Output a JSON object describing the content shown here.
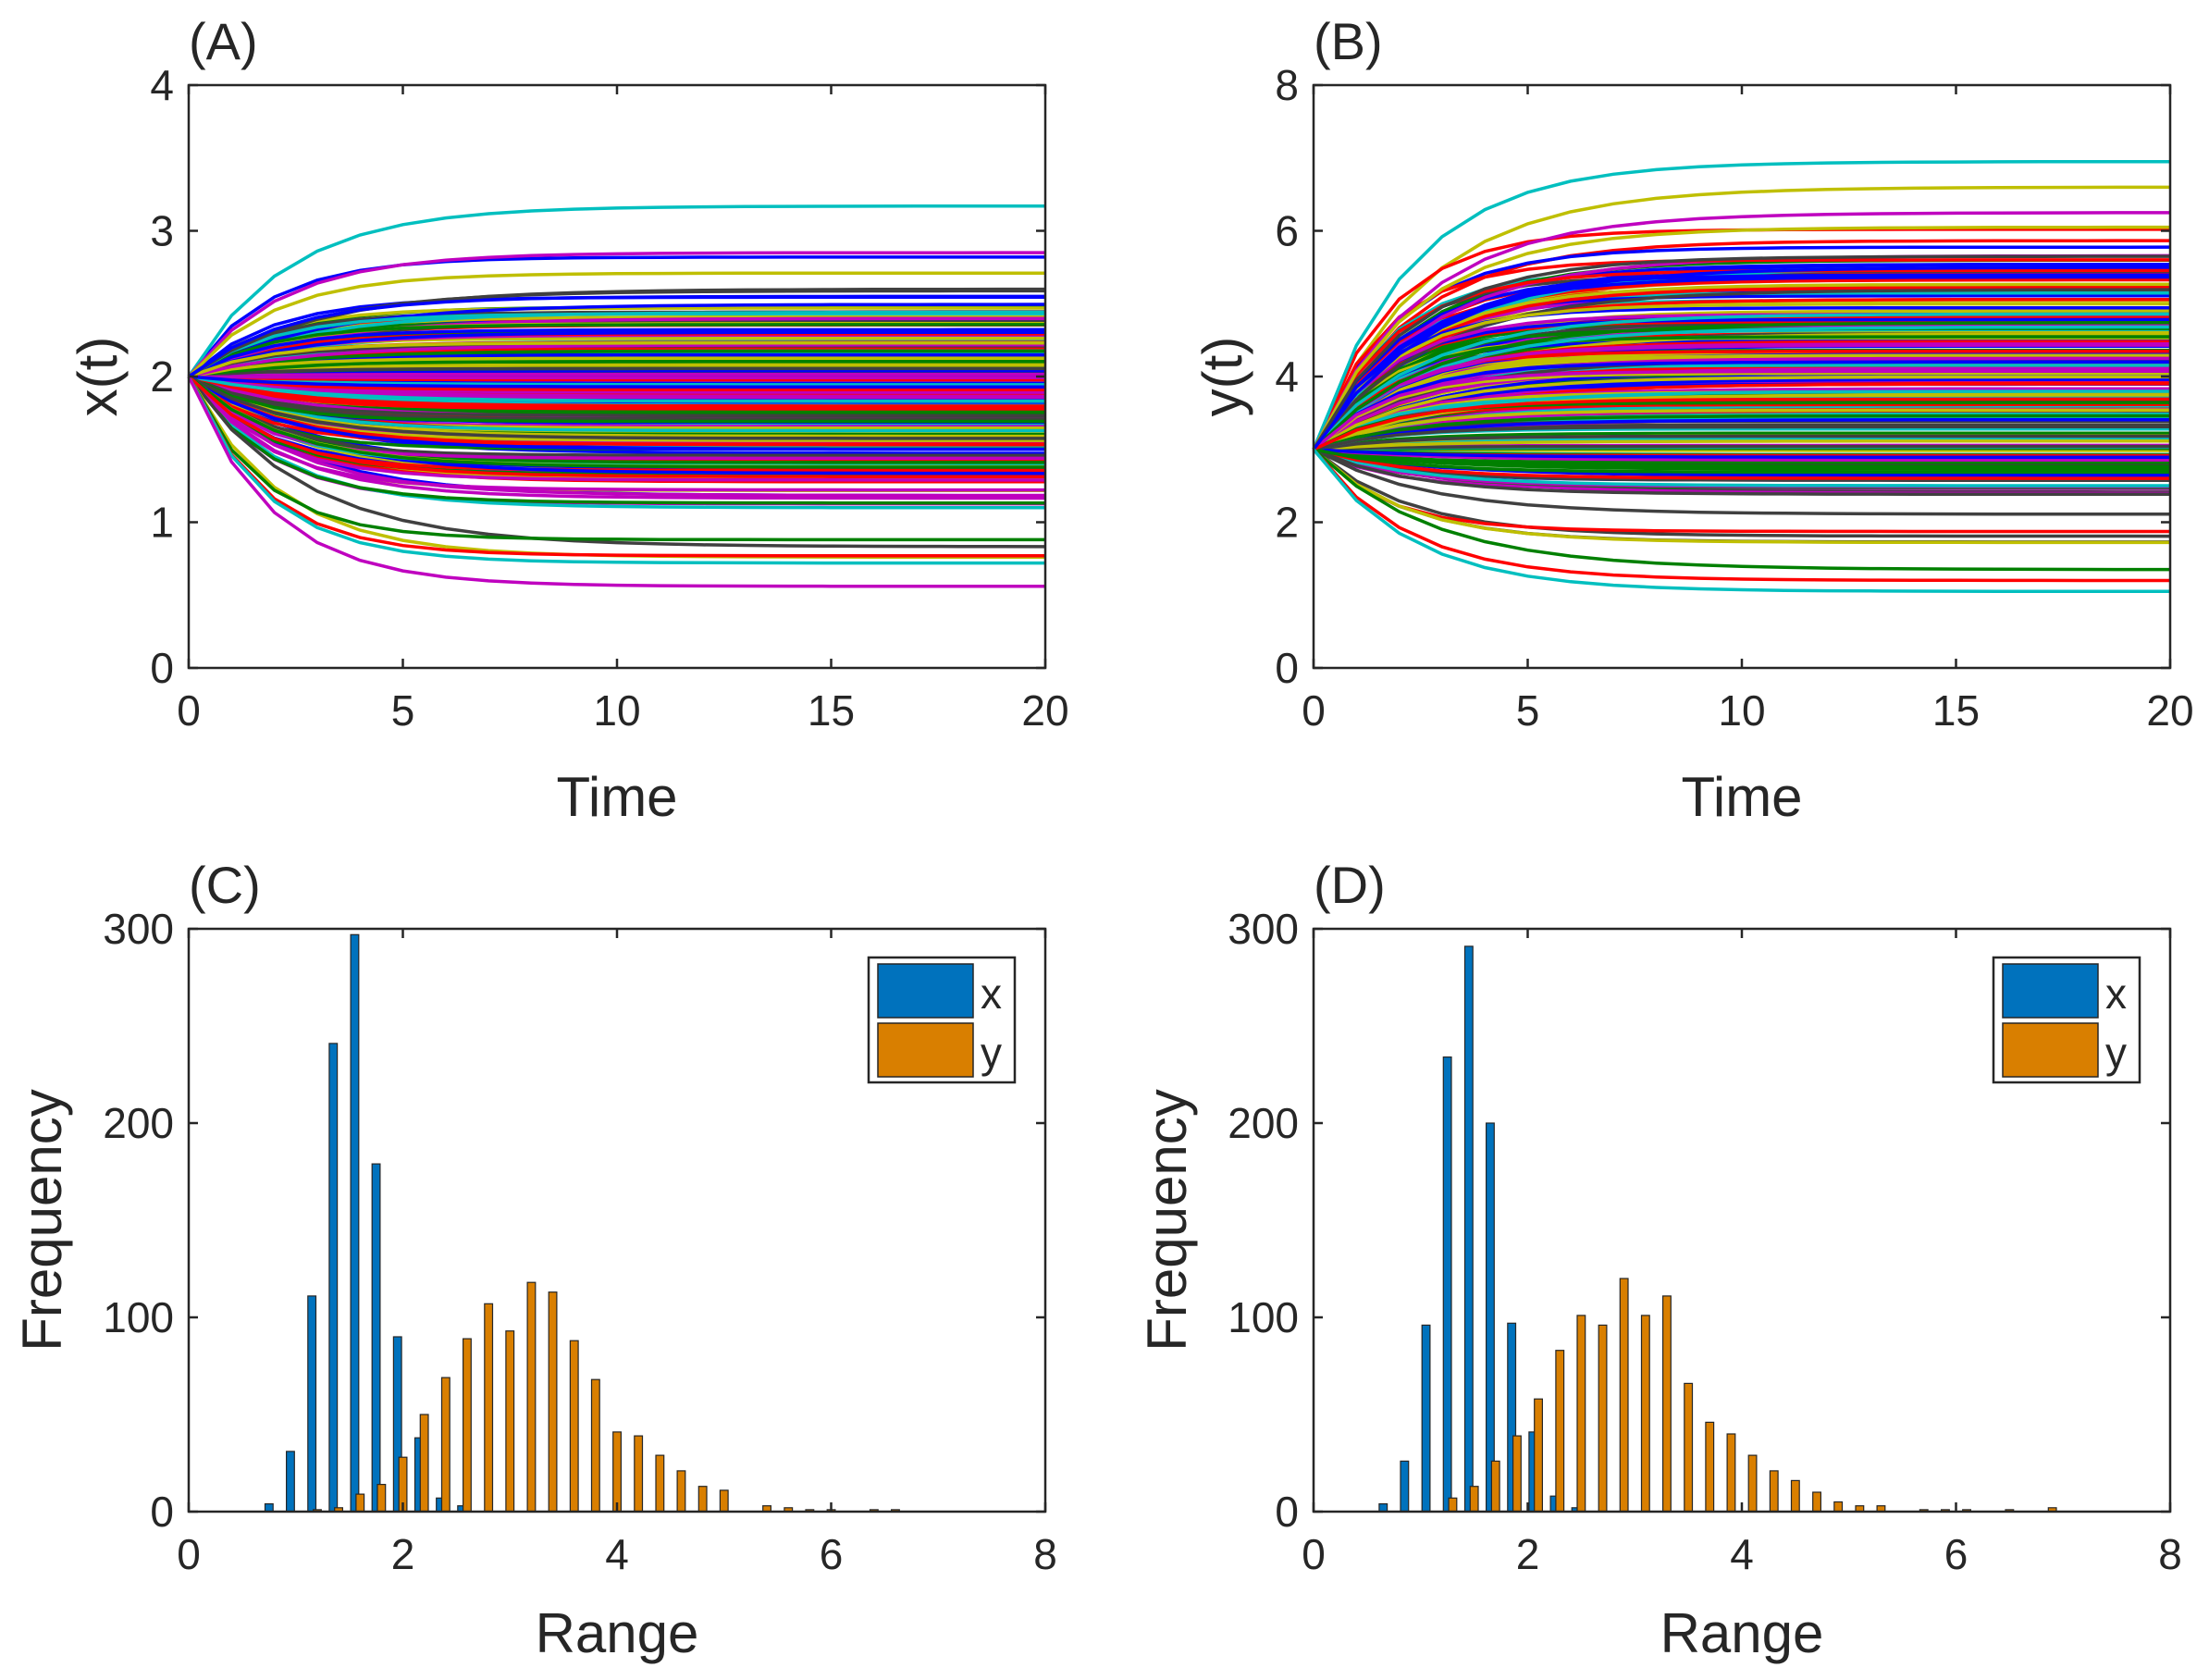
{
  "colors": {
    "x_bar": "#0072BD",
    "y_bar": "#D97F00",
    "axis": "#262626",
    "trajectory_palette": [
      "#0000FF",
      "#008000",
      "#FF0000",
      "#00BFBF",
      "#BF00BF",
      "#BFBF00",
      "#404040"
    ]
  },
  "chart_data": [
    {
      "type": "line",
      "panel_label": "(A)",
      "xlabel": "Time",
      "ylabel": "x(t)",
      "xlim": [
        0,
        20
      ],
      "ylim": [
        0,
        4
      ],
      "xticks": [
        "0",
        "5",
        "10",
        "15",
        "20"
      ],
      "yticks": [
        "0",
        "1",
        "2",
        "3",
        "4"
      ],
      "grid": false,
      "initial_value": 2,
      "time_points": [
        0,
        1,
        2,
        3,
        4,
        5,
        6,
        7,
        8,
        9,
        10,
        11,
        12,
        13,
        14,
        15,
        16,
        17,
        18,
        19,
        20
      ],
      "series_count": 1000,
      "selected_final_values": [
        3.17,
        2.85,
        2.71,
        2.6,
        2.55,
        0.88,
        0.77,
        0.72,
        0.56
      ],
      "final_value_range": [
        0.56,
        3.17
      ]
    },
    {
      "type": "line",
      "panel_label": "(B)",
      "xlabel": "Time",
      "ylabel": "y(t)",
      "xlim": [
        0,
        20
      ],
      "ylim": [
        0,
        8
      ],
      "xticks": [
        "0",
        "5",
        "10",
        "15",
        "20"
      ],
      "yticks": [
        "0",
        "2",
        "4",
        "6",
        "8"
      ],
      "grid": false,
      "initial_value": 3,
      "time_points": [
        0,
        1,
        2,
        3,
        4,
        5,
        6,
        7,
        8,
        9,
        10,
        11,
        12,
        13,
        14,
        15,
        16,
        17,
        18,
        19,
        20
      ],
      "series_count": 1000,
      "selected_final_values": [
        6.95,
        6.25,
        6.05,
        5.65,
        5.5,
        1.35,
        1.2,
        1.05
      ],
      "final_value_range": [
        1.05,
        6.95
      ]
    },
    {
      "type": "bar",
      "panel_label": "(C)",
      "xlabel": "Range",
      "ylabel": "Frequency",
      "xlim": [
        0,
        8
      ],
      "ylim": [
        0,
        300
      ],
      "xticks": [
        "0",
        "2",
        "4",
        "6",
        "8"
      ],
      "yticks": [
        "0",
        "100",
        "200",
        "300"
      ],
      "grid": false,
      "legend_position": "top-right",
      "series": [
        {
          "name": "x",
          "color": "#0072BD",
          "points": [
            [
              0.75,
              4
            ],
            [
              0.95,
              31
            ],
            [
              1.15,
              111
            ],
            [
              1.35,
              241
            ],
            [
              1.55,
              297
            ],
            [
              1.75,
              179
            ],
            [
              1.95,
              90
            ],
            [
              2.15,
              38
            ],
            [
              2.35,
              7
            ],
            [
              2.55,
              3
            ]
          ]
        },
        {
          "name": "y",
          "color": "#D97F00",
          "points": [
            [
              1.2,
              1
            ],
            [
              1.4,
              2
            ],
            [
              1.6,
              9
            ],
            [
              1.8,
              14
            ],
            [
              2.0,
              28
            ],
            [
              2.2,
              50
            ],
            [
              2.4,
              69
            ],
            [
              2.6,
              89
            ],
            [
              2.8,
              107
            ],
            [
              3.0,
              93
            ],
            [
              3.2,
              118
            ],
            [
              3.4,
              113
            ],
            [
              3.6,
              88
            ],
            [
              3.8,
              68
            ],
            [
              4.0,
              41
            ],
            [
              4.2,
              39
            ],
            [
              4.4,
              29
            ],
            [
              4.6,
              21
            ],
            [
              4.8,
              13
            ],
            [
              5.0,
              11
            ],
            [
              5.4,
              3
            ],
            [
              5.6,
              2
            ],
            [
              5.8,
              1
            ],
            [
              6.0,
              1
            ],
            [
              6.4,
              1
            ],
            [
              6.6,
              1
            ]
          ]
        }
      ]
    },
    {
      "type": "bar",
      "panel_label": "(D)",
      "xlabel": "Range",
      "ylabel": "Frequency",
      "xlim": [
        0,
        8
      ],
      "ylim": [
        0,
        300
      ],
      "xticks": [
        "0",
        "2",
        "4",
        "6",
        "8"
      ],
      "yticks": [
        "0",
        "100",
        "200",
        "300"
      ],
      "grid": false,
      "legend_position": "top-right",
      "series": [
        {
          "name": "x",
          "color": "#0072BD",
          "points": [
            [
              0.65,
              4
            ],
            [
              0.85,
              26
            ],
            [
              1.05,
              96
            ],
            [
              1.25,
              234
            ],
            [
              1.45,
              291
            ],
            [
              1.65,
              200
            ],
            [
              1.85,
              97
            ],
            [
              2.05,
              41
            ],
            [
              2.25,
              8
            ],
            [
              2.45,
              2
            ]
          ]
        },
        {
          "name": "y",
          "color": "#D97F00",
          "points": [
            [
              1.3,
              7
            ],
            [
              1.5,
              13
            ],
            [
              1.7,
              26
            ],
            [
              1.9,
              39
            ],
            [
              2.1,
              58
            ],
            [
              2.3,
              83
            ],
            [
              2.5,
              101
            ],
            [
              2.7,
              96
            ],
            [
              2.9,
              120
            ],
            [
              3.1,
              101
            ],
            [
              3.3,
              111
            ],
            [
              3.5,
              66
            ],
            [
              3.7,
              46
            ],
            [
              3.9,
              40
            ],
            [
              4.1,
              29
            ],
            [
              4.3,
              21
            ],
            [
              4.5,
              16
            ],
            [
              4.7,
              10
            ],
            [
              4.9,
              5
            ],
            [
              5.1,
              3
            ],
            [
              5.3,
              3
            ],
            [
              5.7,
              1
            ],
            [
              5.9,
              1
            ],
            [
              6.1,
              1
            ],
            [
              6.5,
              1
            ],
            [
              6.9,
              2
            ]
          ]
        }
      ]
    }
  ]
}
